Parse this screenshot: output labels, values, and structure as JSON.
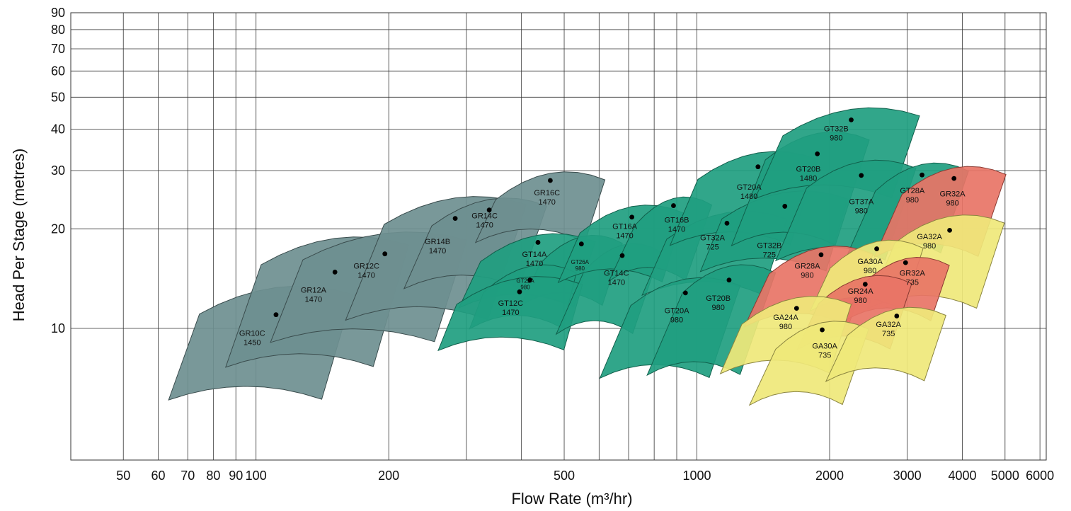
{
  "chart_data": {
    "type": "scatter",
    "title": "",
    "xlabel": "Flow Rate (m³/hr)",
    "ylabel": "Head Per Stage (metres)",
    "x_scale": "log",
    "y_scale": "log",
    "xlim": [
      38,
      6200
    ],
    "ylim": [
      4,
      90
    ],
    "grid": true,
    "x_ticks": [
      50,
      60,
      70,
      80,
      90,
      100,
      200,
      500,
      1000,
      2000,
      3000,
      4000,
      5000,
      6000
    ],
    "x_tick_labels": [
      "50",
      "60",
      "70",
      "80",
      "90",
      "100",
      "200",
      "500",
      "1000",
      "2000",
      "3000",
      "4000",
      "5000",
      "6000"
    ],
    "x_gridlines": [
      50,
      60,
      70,
      80,
      90,
      100,
      200,
      300,
      400,
      500,
      600,
      700,
      800,
      900,
      1000,
      2000,
      3000,
      4000,
      5000,
      6000
    ],
    "y_ticks": [
      10,
      20,
      30,
      40,
      50,
      60,
      70,
      80,
      90
    ],
    "y_tick_labels": [
      "10",
      "20",
      "30",
      "40",
      "50",
      "60",
      "70",
      "80",
      "90"
    ],
    "colors": {
      "gray": "#6e8f90",
      "gray_edge": "#3a4c4d",
      "green": "#1f9e80",
      "green_edge": "#11604c",
      "red": "#e87466",
      "red_edge": "#8a3a32",
      "yellow": "#efe87a",
      "yellow_edge": "#8a8440",
      "grid": "#333333",
      "point": "#000000"
    },
    "regions": [
      {
        "line1": "GR10C",
        "line2": "1450",
        "color": "gray",
        "x": 111,
        "y": 11.0,
        "w": 0.28,
        "up": 0.1,
        "down": 0.2,
        "lx": 98,
        "ly": 9.4
      },
      {
        "line1": "GR12A",
        "line2": "1470",
        "color": "gray",
        "x": 151,
        "y": 14.8,
        "w": 0.27,
        "up": 0.12,
        "down": 0.23,
        "lx": 135,
        "ly": 12.7
      },
      {
        "line1": "GR12C",
        "line2": "1470",
        "color": "gray",
        "x": 196,
        "y": 16.8,
        "w": 0.3,
        "up": 0.08,
        "down": 0.21,
        "lx": 178,
        "ly": 15.0
      },
      {
        "line1": "GR14B",
        "line2": "1470",
        "color": "gray",
        "x": 283,
        "y": 21.5,
        "w": 0.26,
        "up": 0.08,
        "down": 0.25,
        "lx": 258,
        "ly": 17.8
      },
      {
        "line1": "GR14C",
        "line2": "1470",
        "color": "gray",
        "x": 338,
        "y": 22.8,
        "w": 0.21,
        "up": 0.05,
        "down": 0.18,
        "lx": 330,
        "ly": 21.3
      },
      {
        "line1": "GR16C",
        "line2": "1470",
        "color": "gray",
        "x": 465,
        "y": 28.0,
        "w": 0.2,
        "up": 0.04,
        "down": 0.13,
        "lx": 457,
        "ly": 25.0
      },
      {
        "line1": "GT14A",
        "line2": "1470",
        "color": "green",
        "x": 436,
        "y": 18.2,
        "w": 0.21,
        "up": 0.04,
        "down": 0.14,
        "lx": 428,
        "ly": 16.3
      },
      {
        "line1": "GT26A",
        "line2": "980",
        "color": "green",
        "x": 547,
        "y": 18.0,
        "w": 0.15,
        "up": 0.04,
        "down": 0.13,
        "lx": 543,
        "ly": 15.5,
        "small": true
      },
      {
        "line1": "GT22A",
        "line2": "980",
        "color": "green",
        "x": 418,
        "y": 14.0,
        "w": 0.17,
        "up": 0.06,
        "down": 0.09,
        "lx": 408,
        "ly": 13.6,
        "small": true
      },
      {
        "line1": "GT12C",
        "line2": "1470",
        "color": "green",
        "x": 396,
        "y": 12.9,
        "w": 0.23,
        "up": 0.06,
        "down": 0.12,
        "lx": 378,
        "ly": 11.6
      },
      {
        "line1": "GT14C",
        "line2": "1470",
        "color": "green",
        "x": 677,
        "y": 16.6,
        "w": 0.14,
        "up": 0.05,
        "down": 0.18,
        "lx": 657,
        "ly": 14.3
      },
      {
        "line1": "GT16A",
        "line2": "1470",
        "color": "green",
        "x": 712,
        "y": 21.7,
        "w": 0.19,
        "up": 0.05,
        "down": 0.14,
        "lx": 686,
        "ly": 19.8
      },
      {
        "line1": "GT16B",
        "line2": "1470",
        "color": "green",
        "x": 885,
        "y": 23.5,
        "w": 0.14,
        "up": 0.04,
        "down": 0.17,
        "lx": 900,
        "ly": 20.7
      },
      {
        "line1": "GT32A",
        "line2": "725",
        "color": "green",
        "x": 1170,
        "y": 20.8,
        "w": 0.22,
        "up": 0.05,
        "down": 0.16,
        "lx": 1085,
        "ly": 18.3
      },
      {
        "line1": "GT20A",
        "line2": "980",
        "color": "green",
        "x": 942,
        "y": 12.8,
        "w": 0.2,
        "up": 0.06,
        "down": 0.2,
        "lx": 900,
        "ly": 11.0
      },
      {
        "line1": "GT20B",
        "line2": "980",
        "color": "green",
        "x": 1183,
        "y": 14.0,
        "w": 0.17,
        "up": 0.06,
        "down": 0.23,
        "lx": 1118,
        "ly": 12.0
      },
      {
        "line1": "GT20A",
        "line2": "1480",
        "color": "green",
        "x": 1376,
        "y": 30.8,
        "w": 0.22,
        "up": 0.06,
        "down": 0.18,
        "lx": 1313,
        "ly": 26.0
      },
      {
        "line1": "GT32B",
        "line2": "725",
        "color": "green",
        "x": 1583,
        "y": 23.4,
        "w": 0.23,
        "up": 0.06,
        "down": 0.14,
        "lx": 1460,
        "ly": 17.3
      },
      {
        "line1": "GT20B",
        "line2": "1480",
        "color": "green",
        "x": 1876,
        "y": 33.7,
        "w": 0.19,
        "up": 0.08,
        "down": 0.22,
        "lx": 1790,
        "ly": 29.5
      },
      {
        "line1": "GT32B",
        "line2": "980",
        "color": "green",
        "x": 2239,
        "y": 42.7,
        "w": 0.25,
        "up": 0.05,
        "down": 0.18,
        "lx": 2070,
        "ly": 39.0
      },
      {
        "line1": "GT37A",
        "line2": "980",
        "color": "green",
        "x": 2360,
        "y": 29.0,
        "w": 0.2,
        "up": 0.06,
        "down": 0.2,
        "lx": 2360,
        "ly": 23.5
      },
      {
        "line1": "GT28A",
        "line2": "980",
        "color": "green",
        "x": 3241,
        "y": 29.1,
        "w": 0.17,
        "up": 0.05,
        "down": 0.18,
        "lx": 3080,
        "ly": 25.4
      },
      {
        "line1": "GR32A",
        "line2": "980",
        "color": "red",
        "x": 3830,
        "y": 28.4,
        "w": 0.19,
        "up": 0.05,
        "down": 0.18,
        "lx": 3800,
        "ly": 24.8
      },
      {
        "line1": "GA32A",
        "line2": "980",
        "color": "yellow",
        "x": 3744,
        "y": 19.8,
        "w": 0.2,
        "up": 0.06,
        "down": 0.18,
        "lx": 3370,
        "ly": 18.4
      },
      {
        "line1": "GR28A",
        "line2": "980",
        "color": "red",
        "x": 1913,
        "y": 16.7,
        "w": 0.19,
        "up": 0.04,
        "down": 0.16,
        "lx": 1780,
        "ly": 15.0
      },
      {
        "line1": "GA30A",
        "line2": "980",
        "color": "yellow",
        "x": 2558,
        "y": 17.4,
        "w": 0.17,
        "up": 0.04,
        "down": 0.13,
        "lx": 2470,
        "ly": 15.5
      },
      {
        "line1": "GR32A",
        "line2": "735",
        "color": "red",
        "x": 2974,
        "y": 15.8,
        "w": 0.16,
        "up": 0.03,
        "down": 0.12,
        "lx": 3080,
        "ly": 14.3
      },
      {
        "line1": "GR24A",
        "line2": "980",
        "color": "red",
        "x": 2409,
        "y": 13.6,
        "w": 0.17,
        "up": 0.04,
        "down": 0.14,
        "lx": 2350,
        "ly": 12.6
      },
      {
        "line1": "GA24A",
        "line2": "980",
        "color": "yellow",
        "x": 1683,
        "y": 11.5,
        "w": 0.2,
        "up": 0.05,
        "down": 0.14,
        "lx": 1590,
        "ly": 10.5
      },
      {
        "line1": "GA30A",
        "line2": "735",
        "color": "yellow",
        "x": 1924,
        "y": 9.9,
        "w": 0.17,
        "up": 0.04,
        "down": 0.17,
        "lx": 1950,
        "ly": 8.6
      },
      {
        "line1": "GA32A",
        "line2": "735",
        "color": "yellow",
        "x": 2840,
        "y": 10.9,
        "w": 0.18,
        "up": 0.04,
        "down": 0.14,
        "lx": 2720,
        "ly": 10.0
      }
    ]
  }
}
